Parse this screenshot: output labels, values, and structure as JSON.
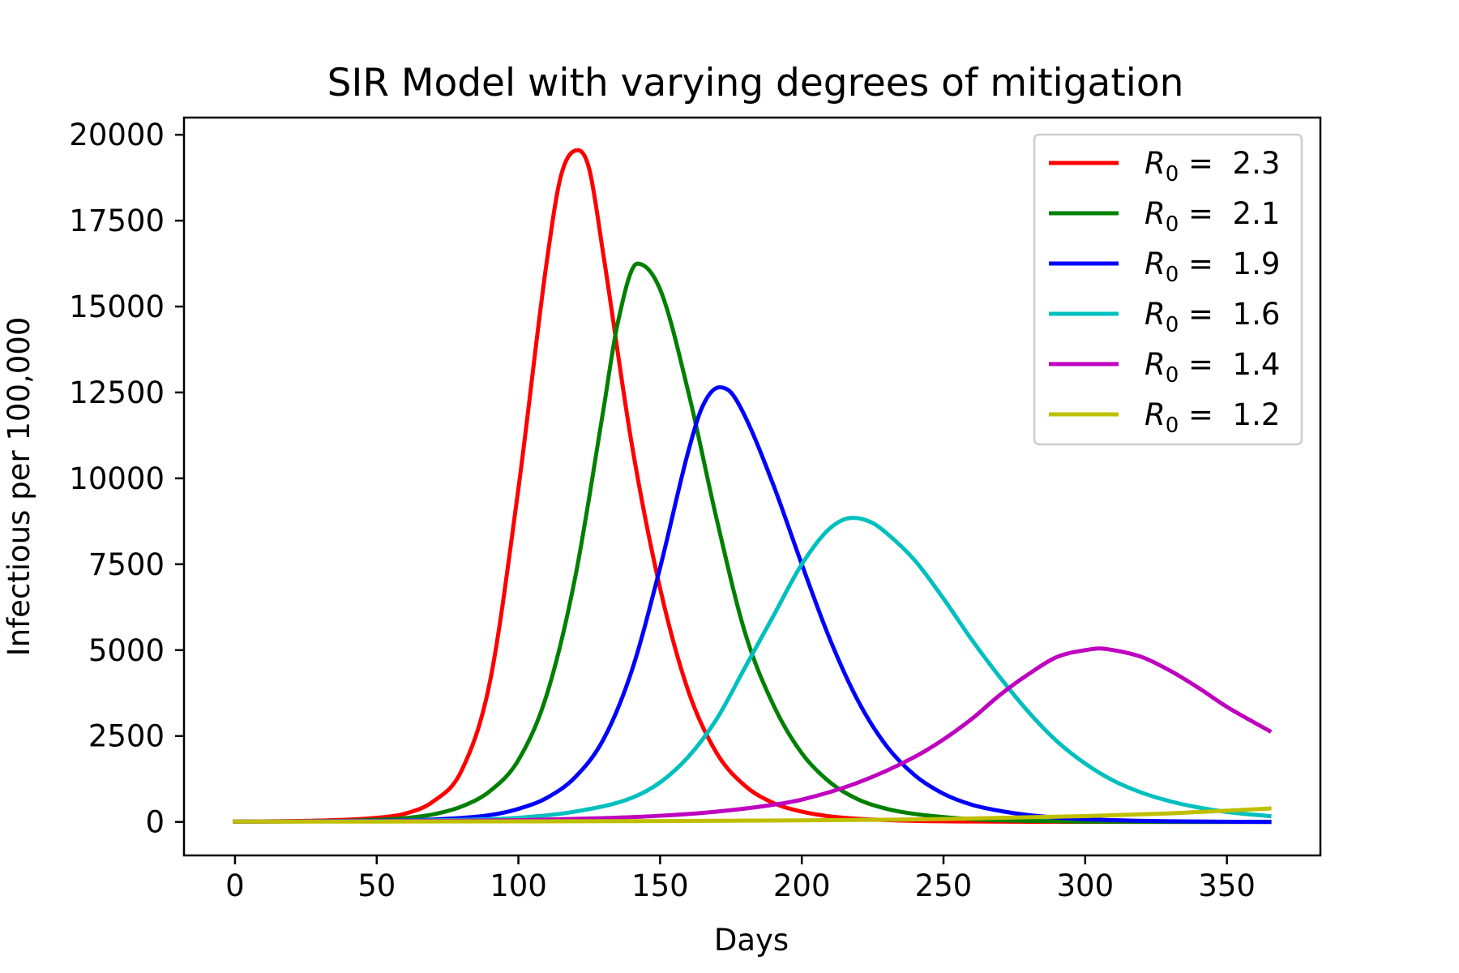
{
  "chart_data": {
    "type": "line",
    "title": "SIR Model with varying degrees of mitigation",
    "xlabel": "Days",
    "ylabel": "Infectious per 100,000",
    "xlim": [
      -18,
      383
    ],
    "ylim": [
      -975,
      20500
    ],
    "xticks": [
      0,
      50,
      100,
      150,
      200,
      250,
      300,
      350
    ],
    "xtick_labels": [
      "0",
      "50",
      "100",
      "150",
      "200",
      "250",
      "300",
      "350"
    ],
    "yticks": [
      0,
      2500,
      5000,
      7500,
      10000,
      12500,
      15000,
      17500,
      20000
    ],
    "ytick_labels": [
      "0",
      "2500",
      "5000",
      "7500",
      "10000",
      "12500",
      "15000",
      "17500",
      "20000"
    ],
    "grid": false,
    "legend_position": "top-right",
    "series": [
      {
        "name": "R0 = 2.3",
        "label_var": "R",
        "label_sub": "0",
        "label_value": "2.3",
        "color": "#ff0000",
        "x": [
          0,
          30,
          50,
          60,
          70,
          80,
          90,
          100,
          110,
          115,
          121,
          125,
          130,
          140,
          150,
          160,
          170,
          180,
          190,
          200,
          210,
          220,
          240,
          260,
          300,
          365
        ],
        "y": [
          10,
          40,
          120,
          240,
          600,
          1500,
          4100,
          9700,
          16300,
          18800,
          19550,
          19000,
          16500,
          11000,
          6800,
          3800,
          2000,
          1050,
          550,
          300,
          160,
          90,
          30,
          12,
          3,
          0
        ]
      },
      {
        "name": "R0 = 2.1",
        "label_var": "R",
        "label_sub": "0",
        "label_value": "2.1",
        "color": "#008000",
        "x": [
          0,
          30,
          50,
          60,
          70,
          80,
          90,
          100,
          110,
          120,
          130,
          135,
          142,
          150,
          160,
          170,
          180,
          190,
          200,
          210,
          220,
          230,
          240,
          260,
          280,
          300,
          365
        ],
        "y": [
          10,
          20,
          60,
          110,
          220,
          450,
          900,
          1800,
          3700,
          7100,
          12000,
          14500,
          16250,
          15500,
          12500,
          8800,
          5500,
          3400,
          2000,
          1150,
          650,
          380,
          230,
          80,
          30,
          10,
          0
        ]
      },
      {
        "name": "R0 = 1.9",
        "label_var": "R",
        "label_sub": "0",
        "label_value": "1.9",
        "color": "#0000ff",
        "x": [
          0,
          50,
          70,
          90,
          100,
          110,
          120,
          130,
          140,
          150,
          160,
          165,
          171,
          175,
          180,
          190,
          200,
          210,
          220,
          230,
          240,
          250,
          260,
          270,
          280,
          300,
          330,
          365
        ],
        "y": [
          10,
          30,
          70,
          200,
          380,
          700,
          1300,
          2400,
          4400,
          7400,
          10800,
          12100,
          12650,
          12500,
          11800,
          9800,
          7500,
          5300,
          3500,
          2200,
          1350,
          820,
          500,
          320,
          200,
          80,
          20,
          0
        ]
      },
      {
        "name": "R0 = 1.6",
        "label_var": "R",
        "label_sub": "0",
        "label_value": "1.6",
        "color": "#00bfbf",
        "x": [
          0,
          50,
          80,
          100,
          120,
          140,
          150,
          160,
          170,
          180,
          190,
          200,
          210,
          218,
          225,
          230,
          240,
          250,
          260,
          270,
          280,
          290,
          300,
          310,
          320,
          330,
          340,
          350,
          365
        ],
        "y": [
          10,
          25,
          60,
          120,
          300,
          700,
          1150,
          1900,
          3000,
          4500,
          6000,
          7500,
          8550,
          8850,
          8700,
          8400,
          7600,
          6500,
          5300,
          4200,
          3200,
          2350,
          1700,
          1200,
          850,
          600,
          420,
          290,
          170
        ]
      },
      {
        "name": "R0 = 1.4",
        "label_var": "R",
        "label_sub": "0",
        "label_value": "1.4",
        "color": "#bf00bf",
        "x": [
          0,
          50,
          100,
          130,
          150,
          170,
          190,
          200,
          220,
          240,
          250,
          260,
          270,
          280,
          290,
          300,
          305,
          310,
          320,
          330,
          340,
          350,
          365
        ],
        "y": [
          10,
          20,
          50,
          110,
          180,
          300,
          500,
          650,
          1150,
          1900,
          2400,
          3000,
          3700,
          4300,
          4800,
          5000,
          5050,
          5000,
          4800,
          4400,
          3900,
          3350,
          2650
        ]
      },
      {
        "name": "R0 = 1.2",
        "label_var": "R",
        "label_sub": "0",
        "label_value": "1.2",
        "color": "#bfbf00",
        "x": [
          0,
          100,
          150,
          200,
          250,
          300,
          330,
          365
        ],
        "y": [
          10,
          15,
          25,
          45,
          85,
          170,
          250,
          390
        ]
      }
    ]
  }
}
